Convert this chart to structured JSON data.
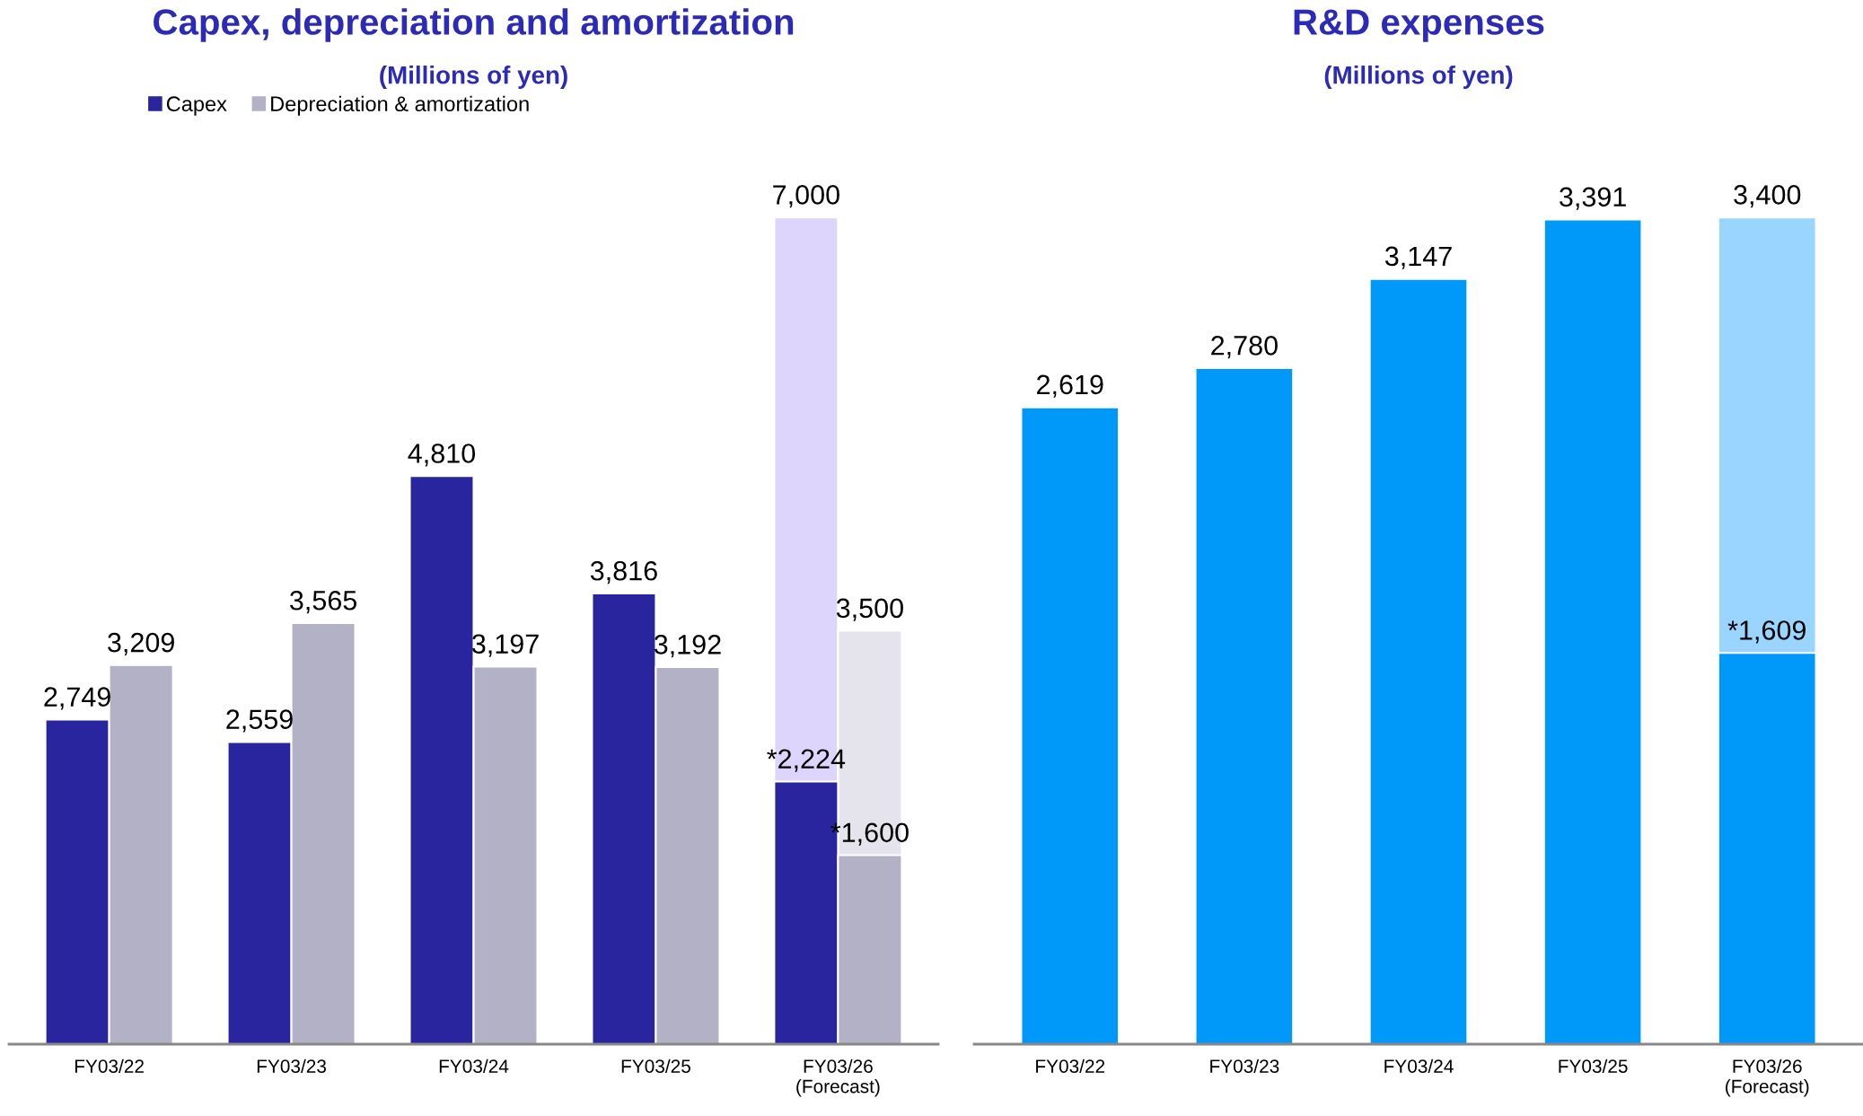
{
  "chart_data": [
    {
      "type": "bar",
      "title": "Capex, depreciation and amortization",
      "subtitle": "(Millions of yen)",
      "categories": [
        "FY03/22",
        "FY03/23",
        "FY03/24",
        "FY03/25",
        "FY03/26\n(Forecast)"
      ],
      "legend": "top left",
      "series": [
        {
          "color": "#ddd5fb",
          "values": [
            null,
            null,
            null,
            null,
            7000
          ],
          "value_labels": [
            null,
            null,
            null,
            null,
            "7,000"
          ]
        },
        {
          "color": "#e5e4ec",
          "values": [
            null,
            null,
            null,
            null,
            3500
          ],
          "value_labels": [
            null,
            null,
            null,
            null,
            "3,500"
          ]
        },
        {
          "name": "Capex",
          "color": "#29259e",
          "values": [
            2749,
            2559,
            4810,
            3816,
            2224
          ],
          "value_labels": [
            "2,749",
            "2,559",
            "4,810",
            "3,816",
            "*2,224"
          ]
        },
        {
          "name": "Depreciation & amortization",
          "color": "#b3b1c6",
          "values": [
            3209,
            3565,
            3197,
            3192,
            1600
          ],
          "value_labels": [
            "3,209",
            "3,565",
            "3,197",
            "3,192",
            "*1,600"
          ]
        }
      ]
    },
    {
      "type": "bar",
      "title": "R&D expenses",
      "subtitle": "(Millions of yen)",
      "categories": [
        "FY03/22",
        "FY03/23",
        "FY03/24",
        "FY03/25",
        "FY03/26\n(Forecast)"
      ],
      "series": [
        {
          "color": "#99d5ff",
          "values": [
            null,
            null,
            null,
            null,
            3400
          ],
          "value_labels": [
            null,
            null,
            null,
            null,
            "3,400"
          ]
        },
        {
          "color": "#0099fa",
          "values": [
            2619,
            2780,
            3147,
            3391,
            1609
          ],
          "value_labels": [
            "2,619",
            "2,780",
            "3,147",
            "3,391",
            "*1,609"
          ]
        }
      ]
    }
  ]
}
